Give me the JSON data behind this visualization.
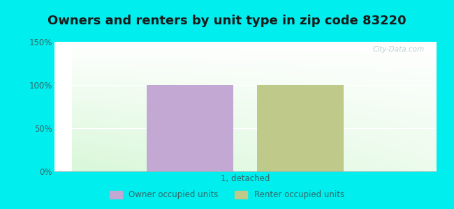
{
  "title": "Owners and renters by unit type in zip code 83220",
  "categories": [
    "1, detached"
  ],
  "owner_values": [
    100
  ],
  "renter_values": [
    100
  ],
  "owner_color": "#c4a8d4",
  "renter_color": "#bec98a",
  "ylim": [
    0,
    150
  ],
  "yticks": [
    0,
    50,
    100,
    150
  ],
  "ytick_labels": [
    "0%",
    "50%",
    "100%",
    "150%"
  ],
  "owner_label": "Owner occupied units",
  "renter_label": "Renter occupied units",
  "bg_color": "#00eeee",
  "watermark": "City-Data.com",
  "bar_width": 0.25,
  "title_fontsize": 13
}
